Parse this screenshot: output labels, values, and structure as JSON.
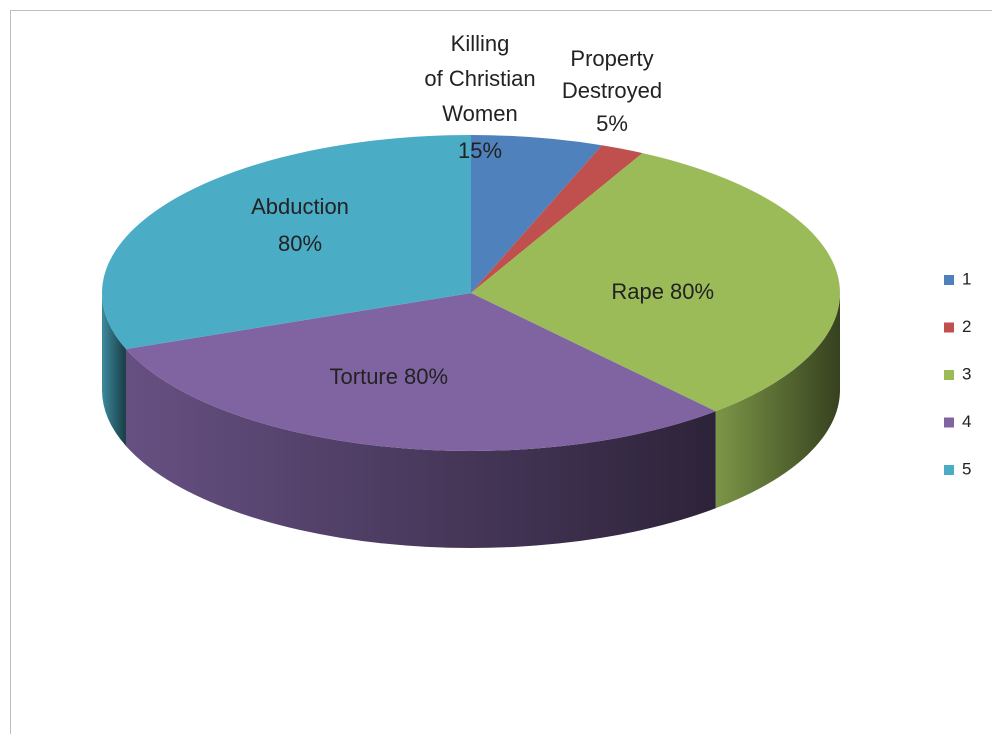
{
  "chart_data": {
    "type": "pie",
    "categories": [
      "1",
      "2",
      "3",
      "4",
      "5"
    ],
    "slice_labels": [
      [
        "Killing",
        "of Christian",
        "Women"
      ],
      [
        "Property",
        "Destroyed"
      ],
      [
        "Rape"
      ],
      [
        "Torture"
      ],
      [
        "Abduction"
      ]
    ],
    "values": [
      15,
      5,
      80,
      80,
      80
    ],
    "value_labels": [
      "15%",
      "5%",
      "80%",
      "80%",
      "80%"
    ],
    "colors": [
      "#4f81bd",
      "#c0504d",
      "#9bbb59",
      "#8064a2",
      "#4bacc6"
    ],
    "legend": "right"
  }
}
